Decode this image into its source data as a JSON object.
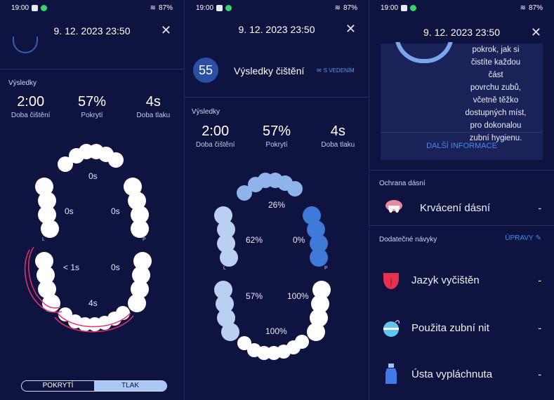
{
  "status": {
    "time": "19:00",
    "battery": "87%"
  },
  "screen1": {
    "date": "9. 12. 2023 23:50",
    "results_heading": "Výsledky",
    "stats": [
      {
        "value": "2:00",
        "label": "Doba čištění"
      },
      {
        "value": "57%",
        "label": "Pokrytí"
      },
      {
        "value": "4s",
        "label": "Doba tlaku"
      }
    ],
    "zones": {
      "upper_front": "0s",
      "upper_left": "0s",
      "upper_right": "0s",
      "lower_left": "< 1s",
      "lower_right": "0s",
      "lower_front": "4s"
    },
    "side_left": "L",
    "side_right": "P",
    "toggle": {
      "left": "POKRYTÍ",
      "right": "TLAK"
    }
  },
  "screen2": {
    "date": "9. 12. 2023 23:50",
    "score": "55",
    "score_title": "Výsledky čištění",
    "mode": "S VEDENÍM",
    "results_heading": "Výsledky",
    "stats": [
      {
        "value": "2:00",
        "label": "Doba čištění"
      },
      {
        "value": "57%",
        "label": "Pokrytí"
      },
      {
        "value": "4s",
        "label": "Doba tlaku"
      }
    ],
    "zones": {
      "upper_front": "26%",
      "upper_left": "62%",
      "upper_right": "0%",
      "lower_left": "57%",
      "lower_right": "100%",
      "lower_front": "100%"
    },
    "side_left": "L",
    "side_right": "P"
  },
  "screen3": {
    "date": "9. 12. 2023 23:50",
    "info_lines": [
      "pokrok, jak si",
      "čistíte každou část",
      "povrchu zubů,",
      "včetně těžko",
      "dostupných míst,",
      "pro dokonalou",
      "zubní hygienu."
    ],
    "more_info": "DALŠÍ INFORMACE",
    "gum_heading": "Ochrana dásní",
    "gum_item": "Krvácení dásní",
    "gum_value": "-",
    "habits_heading": "Dodatečné návyky",
    "edit": "ÚPRAVY",
    "habits": [
      {
        "label": "Jazyk vyčištěn",
        "value": "-"
      },
      {
        "label": "Použita zubní nit",
        "value": "-"
      },
      {
        "label": "Ústa vypláchnuta",
        "value": "-"
      }
    ]
  },
  "colors": {
    "background": "#0f1340",
    "accent": "#3f8cf5",
    "pressure": "#e5336a",
    "tooth_white": "#ffffff",
    "tooth_light": "#b9d0f2",
    "tooth_mid": "#8fb4ec",
    "tooth_dark": "#3f7ad8"
  }
}
